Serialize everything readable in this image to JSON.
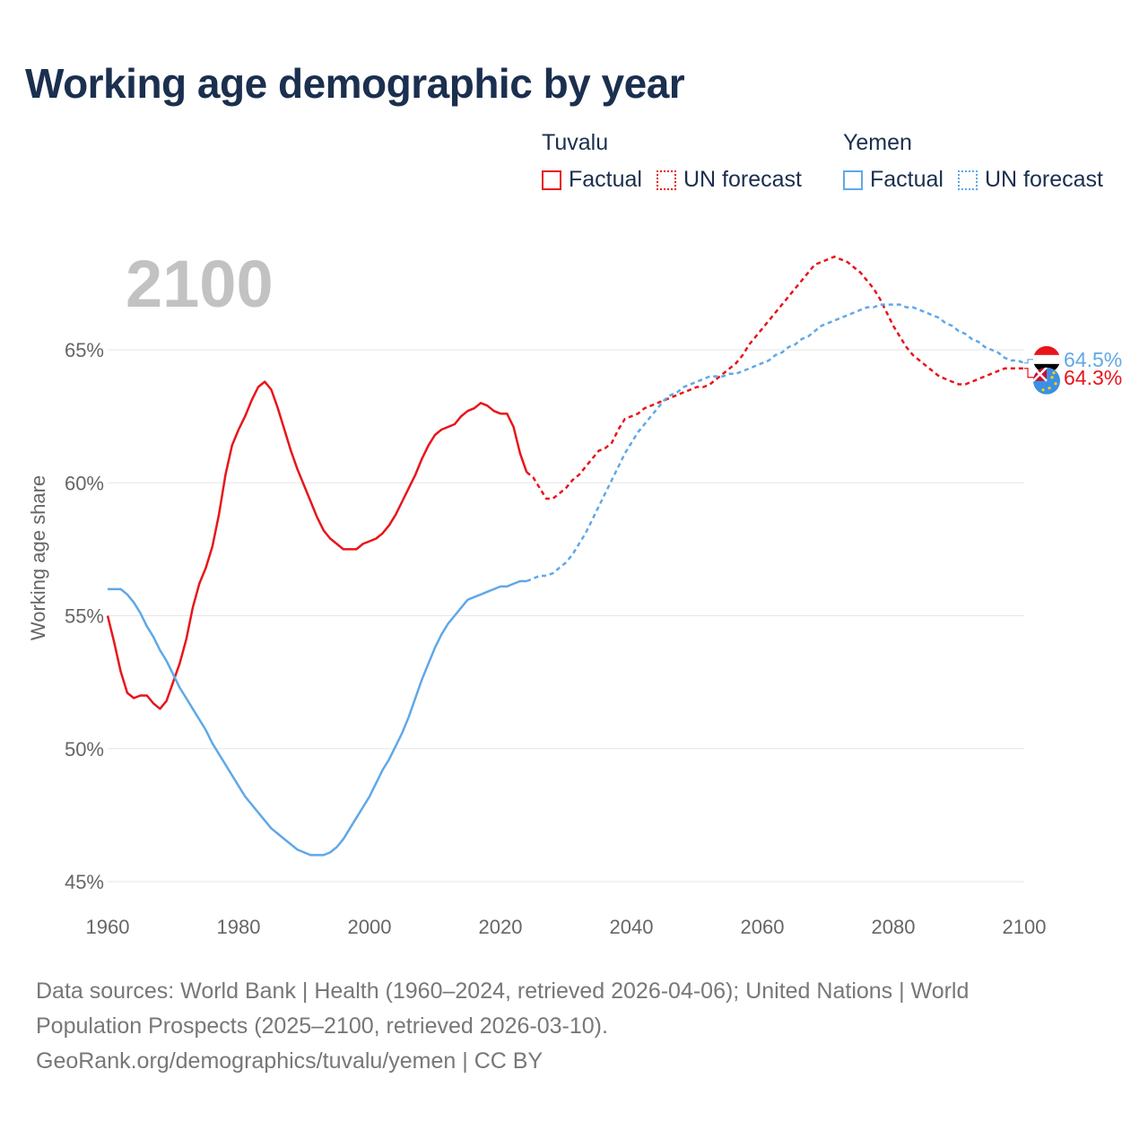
{
  "page": {
    "title": "Working age demographic by year"
  },
  "legend": [
    {
      "country": "Tuvalu",
      "factual_label": "Factual",
      "forecast_label": "UN forecast",
      "color": "#e8151b"
    },
    {
      "country": "Yemen",
      "factual_label": "Factual",
      "forecast_label": "UN forecast",
      "color": "#5fa8e8"
    }
  ],
  "footer": {
    "line1": "Data sources: World Bank | Health (1960–2024, retrieved 2026-04-06); United Nations | World",
    "line2": "Population Prospects (2025–2100, retrieved 2026-03-10).",
    "line3": "GeoRank.org/demographics/tuvalu/yemen | CC BY"
  },
  "colors": {
    "tuvalu": "#e8151b",
    "yemen": "#5fa8e8",
    "title": "#1b2f4f",
    "year_watermark": "#c2c2c2",
    "axis_text": "#666666",
    "grid": "#e6e6e6"
  },
  "chart_data": {
    "type": "line",
    "title": "Working age demographic by year",
    "xlabel": "",
    "ylabel": "Working age share",
    "year_label": "2100",
    "xlim": [
      1960,
      2100
    ],
    "ylim": [
      44.7,
      69.3
    ],
    "xticks": [
      1960,
      1980,
      2000,
      2020,
      2040,
      2060,
      2080,
      2100
    ],
    "xtick_labels": [
      "1960",
      "1980",
      "2000",
      "2020",
      "2040",
      "2060",
      "2080",
      "2100"
    ],
    "yticks": [
      45,
      50,
      55,
      60,
      65
    ],
    "ytick_labels": [
      "45%",
      "50%",
      "55%",
      "60%",
      "65%"
    ],
    "factual_range": "1960–2024",
    "forecast_range": "2024–2100",
    "series": [
      {
        "name": "Tuvalu",
        "color": "#e8151b",
        "end_label": "64.3%",
        "end_icon": "tuvalu-flag-icon",
        "factual": [
          [
            1960,
            55.0
          ],
          [
            1961,
            54.0
          ],
          [
            1962,
            52.9
          ],
          [
            1963,
            52.1
          ],
          [
            1964,
            51.9
          ],
          [
            1965,
            52.0
          ],
          [
            1966,
            52.0
          ],
          [
            1967,
            51.7
          ],
          [
            1968,
            51.5
          ],
          [
            1969,
            51.8
          ],
          [
            1970,
            52.5
          ],
          [
            1971,
            53.2
          ],
          [
            1972,
            54.1
          ],
          [
            1973,
            55.3
          ],
          [
            1974,
            56.2
          ],
          [
            1975,
            56.8
          ],
          [
            1976,
            57.6
          ],
          [
            1977,
            58.8
          ],
          [
            1978,
            60.3
          ],
          [
            1979,
            61.4
          ],
          [
            1980,
            62.0
          ],
          [
            1981,
            62.5
          ],
          [
            1982,
            63.1
          ],
          [
            1983,
            63.6
          ],
          [
            1984,
            63.8
          ],
          [
            1985,
            63.5
          ],
          [
            1986,
            62.8
          ],
          [
            1987,
            62.0
          ],
          [
            1988,
            61.2
          ],
          [
            1989,
            60.5
          ],
          [
            1990,
            59.9
          ],
          [
            1991,
            59.3
          ],
          [
            1992,
            58.7
          ],
          [
            1993,
            58.2
          ],
          [
            1994,
            57.9
          ],
          [
            1995,
            57.7
          ],
          [
            1996,
            57.5
          ],
          [
            1997,
            57.5
          ],
          [
            1998,
            57.5
          ],
          [
            1999,
            57.7
          ],
          [
            2000,
            57.8
          ],
          [
            2001,
            57.9
          ],
          [
            2002,
            58.1
          ],
          [
            2003,
            58.4
          ],
          [
            2004,
            58.8
          ],
          [
            2005,
            59.3
          ],
          [
            2006,
            59.8
          ],
          [
            2007,
            60.3
          ],
          [
            2008,
            60.9
          ],
          [
            2009,
            61.4
          ],
          [
            2010,
            61.8
          ],
          [
            2011,
            62.0
          ],
          [
            2012,
            62.1
          ],
          [
            2013,
            62.2
          ],
          [
            2014,
            62.5
          ],
          [
            2015,
            62.7
          ],
          [
            2016,
            62.8
          ],
          [
            2017,
            63.0
          ],
          [
            2018,
            62.9
          ],
          [
            2019,
            62.7
          ],
          [
            2020,
            62.6
          ],
          [
            2021,
            62.6
          ],
          [
            2022,
            62.1
          ],
          [
            2023,
            61.1
          ],
          [
            2024,
            60.4
          ]
        ],
        "forecast": [
          [
            2024,
            60.4
          ],
          [
            2025,
            60.2
          ],
          [
            2026,
            59.8
          ],
          [
            2027,
            59.4
          ],
          [
            2028,
            59.4
          ],
          [
            2029,
            59.6
          ],
          [
            2030,
            59.8
          ],
          [
            2031,
            60.1
          ],
          [
            2032,
            60.3
          ],
          [
            2033,
            60.6
          ],
          [
            2034,
            60.9
          ],
          [
            2035,
            61.2
          ],
          [
            2036,
            61.3
          ],
          [
            2037,
            61.5
          ],
          [
            2038,
            62.0
          ],
          [
            2039,
            62.4
          ],
          [
            2040,
            62.5
          ],
          [
            2041,
            62.6
          ],
          [
            2042,
            62.8
          ],
          [
            2043,
            62.9
          ],
          [
            2044,
            63.0
          ],
          [
            2045,
            63.1
          ],
          [
            2046,
            63.2
          ],
          [
            2047,
            63.3
          ],
          [
            2048,
            63.4
          ],
          [
            2049,
            63.5
          ],
          [
            2050,
            63.6
          ],
          [
            2051,
            63.6
          ],
          [
            2052,
            63.7
          ],
          [
            2053,
            63.9
          ],
          [
            2054,
            64.1
          ],
          [
            2055,
            64.3
          ],
          [
            2056,
            64.5
          ],
          [
            2057,
            64.8
          ],
          [
            2058,
            65.2
          ],
          [
            2059,
            65.5
          ],
          [
            2060,
            65.8
          ],
          [
            2061,
            66.1
          ],
          [
            2062,
            66.4
          ],
          [
            2063,
            66.7
          ],
          [
            2064,
            67.0
          ],
          [
            2065,
            67.3
          ],
          [
            2066,
            67.6
          ],
          [
            2067,
            67.9
          ],
          [
            2068,
            68.2
          ],
          [
            2069,
            68.3
          ],
          [
            2070,
            68.4
          ],
          [
            2071,
            68.5
          ],
          [
            2072,
            68.4
          ],
          [
            2073,
            68.3
          ],
          [
            2074,
            68.1
          ],
          [
            2075,
            67.9
          ],
          [
            2076,
            67.6
          ],
          [
            2077,
            67.3
          ],
          [
            2078,
            66.9
          ],
          [
            2079,
            66.4
          ],
          [
            2080,
            65.9
          ],
          [
            2081,
            65.5
          ],
          [
            2082,
            65.1
          ],
          [
            2083,
            64.8
          ],
          [
            2084,
            64.6
          ],
          [
            2085,
            64.4
          ],
          [
            2086,
            64.2
          ],
          [
            2087,
            64.0
          ],
          [
            2088,
            63.9
          ],
          [
            2089,
            63.8
          ],
          [
            2090,
            63.7
          ],
          [
            2091,
            63.7
          ],
          [
            2092,
            63.8
          ],
          [
            2093,
            63.9
          ],
          [
            2094,
            64.0
          ],
          [
            2095,
            64.1
          ],
          [
            2096,
            64.2
          ],
          [
            2097,
            64.3
          ],
          [
            2098,
            64.3
          ],
          [
            2099,
            64.3
          ],
          [
            2100,
            64.3
          ]
        ]
      },
      {
        "name": "Yemen",
        "color": "#5fa8e8",
        "end_label": "64.5%",
        "end_icon": "yemen-flag-icon",
        "factual": [
          [
            1960,
            56.0
          ],
          [
            1961,
            56.0
          ],
          [
            1962,
            56.0
          ],
          [
            1963,
            55.8
          ],
          [
            1964,
            55.5
          ],
          [
            1965,
            55.1
          ],
          [
            1966,
            54.6
          ],
          [
            1967,
            54.2
          ],
          [
            1968,
            53.7
          ],
          [
            1969,
            53.3
          ],
          [
            1970,
            52.8
          ],
          [
            1971,
            52.3
          ],
          [
            1972,
            51.9
          ],
          [
            1973,
            51.5
          ],
          [
            1974,
            51.1
          ],
          [
            1975,
            50.7
          ],
          [
            1976,
            50.2
          ],
          [
            1977,
            49.8
          ],
          [
            1978,
            49.4
          ],
          [
            1979,
            49.0
          ],
          [
            1980,
            48.6
          ],
          [
            1981,
            48.2
          ],
          [
            1982,
            47.9
          ],
          [
            1983,
            47.6
          ],
          [
            1984,
            47.3
          ],
          [
            1985,
            47.0
          ],
          [
            1986,
            46.8
          ],
          [
            1987,
            46.6
          ],
          [
            1988,
            46.4
          ],
          [
            1989,
            46.2
          ],
          [
            1990,
            46.1
          ],
          [
            1991,
            46.0
          ],
          [
            1992,
            46.0
          ],
          [
            1993,
            46.0
          ],
          [
            1994,
            46.1
          ],
          [
            1995,
            46.3
          ],
          [
            1996,
            46.6
          ],
          [
            1997,
            47.0
          ],
          [
            1998,
            47.4
          ],
          [
            1999,
            47.8
          ],
          [
            2000,
            48.2
          ],
          [
            2001,
            48.7
          ],
          [
            2002,
            49.2
          ],
          [
            2003,
            49.6
          ],
          [
            2004,
            50.1
          ],
          [
            2005,
            50.6
          ],
          [
            2006,
            51.2
          ],
          [
            2007,
            51.9
          ],
          [
            2008,
            52.6
          ],
          [
            2009,
            53.2
          ],
          [
            2010,
            53.8
          ],
          [
            2011,
            54.3
          ],
          [
            2012,
            54.7
          ],
          [
            2013,
            55.0
          ],
          [
            2014,
            55.3
          ],
          [
            2015,
            55.6
          ],
          [
            2016,
            55.7
          ],
          [
            2017,
            55.8
          ],
          [
            2018,
            55.9
          ],
          [
            2019,
            56.0
          ],
          [
            2020,
            56.1
          ],
          [
            2021,
            56.1
          ],
          [
            2022,
            56.2
          ],
          [
            2023,
            56.3
          ],
          [
            2024,
            56.3
          ]
        ],
        "forecast": [
          [
            2024,
            56.3
          ],
          [
            2025,
            56.4
          ],
          [
            2026,
            56.5
          ],
          [
            2027,
            56.5
          ],
          [
            2028,
            56.6
          ],
          [
            2029,
            56.8
          ],
          [
            2030,
            57.0
          ],
          [
            2031,
            57.3
          ],
          [
            2032,
            57.7
          ],
          [
            2033,
            58.1
          ],
          [
            2034,
            58.6
          ],
          [
            2035,
            59.1
          ],
          [
            2036,
            59.6
          ],
          [
            2037,
            60.1
          ],
          [
            2038,
            60.6
          ],
          [
            2039,
            61.1
          ],
          [
            2040,
            61.5
          ],
          [
            2041,
            61.9
          ],
          [
            2042,
            62.2
          ],
          [
            2043,
            62.5
          ],
          [
            2044,
            62.8
          ],
          [
            2045,
            63.1
          ],
          [
            2046,
            63.3
          ],
          [
            2047,
            63.4
          ],
          [
            2048,
            63.6
          ],
          [
            2049,
            63.7
          ],
          [
            2050,
            63.8
          ],
          [
            2051,
            63.9
          ],
          [
            2052,
            64.0
          ],
          [
            2053,
            64.0
          ],
          [
            2054,
            64.0
          ],
          [
            2055,
            64.1
          ],
          [
            2056,
            64.1
          ],
          [
            2057,
            64.2
          ],
          [
            2058,
            64.3
          ],
          [
            2059,
            64.4
          ],
          [
            2060,
            64.5
          ],
          [
            2061,
            64.6
          ],
          [
            2062,
            64.8
          ],
          [
            2063,
            64.9
          ],
          [
            2064,
            65.1
          ],
          [
            2065,
            65.2
          ],
          [
            2066,
            65.4
          ],
          [
            2067,
            65.5
          ],
          [
            2068,
            65.7
          ],
          [
            2069,
            65.9
          ],
          [
            2070,
            66.0
          ],
          [
            2071,
            66.1
          ],
          [
            2072,
            66.2
          ],
          [
            2073,
            66.3
          ],
          [
            2074,
            66.4
          ],
          [
            2075,
            66.5
          ],
          [
            2076,
            66.6
          ],
          [
            2077,
            66.6
          ],
          [
            2078,
            66.7
          ],
          [
            2079,
            66.7
          ],
          [
            2080,
            66.7
          ],
          [
            2081,
            66.7
          ],
          [
            2082,
            66.6
          ],
          [
            2083,
            66.6
          ],
          [
            2084,
            66.5
          ],
          [
            2085,
            66.4
          ],
          [
            2086,
            66.3
          ],
          [
            2087,
            66.2
          ],
          [
            2088,
            66.0
          ],
          [
            2089,
            65.9
          ],
          [
            2090,
            65.7
          ],
          [
            2091,
            65.6
          ],
          [
            2092,
            65.4
          ],
          [
            2093,
            65.3
          ],
          [
            2094,
            65.1
          ],
          [
            2095,
            65.0
          ],
          [
            2096,
            64.9
          ],
          [
            2097,
            64.7
          ],
          [
            2098,
            64.6
          ],
          [
            2099,
            64.6
          ],
          [
            2100,
            64.5
          ]
        ]
      }
    ]
  }
}
